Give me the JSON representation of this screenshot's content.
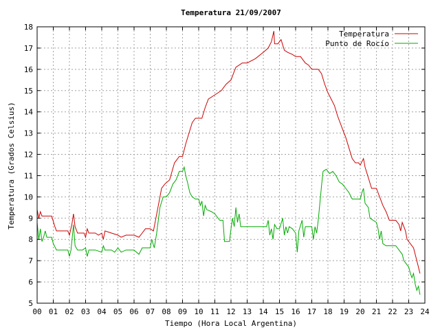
{
  "chart_data": {
    "type": "line",
    "title": "Temperatura 21/09/2007",
    "xlabel": "Tiempo (Hora Local Argentina)",
    "ylabel": "Temperatura (Grados Celsius)",
    "xlim": [
      0,
      24
    ],
    "ylim": [
      5,
      18
    ],
    "x_ticks": [
      "00",
      "01",
      "02",
      "03",
      "04",
      "05",
      "06",
      "07",
      "08",
      "09",
      "10",
      "11",
      "12",
      "13",
      "14",
      "15",
      "16",
      "17",
      "18",
      "19",
      "20",
      "21",
      "22",
      "23",
      "24"
    ],
    "y_ticks": [
      "5",
      "6",
      "7",
      "8",
      "9",
      "10",
      "11",
      "12",
      "13",
      "14",
      "15",
      "16",
      "17",
      "18"
    ],
    "grid": true,
    "legend_position": "top-right",
    "series": [
      {
        "name": "Temperatura",
        "color": "#cc0000",
        "points": [
          [
            0.0,
            9.4
          ],
          [
            0.1,
            9.0
          ],
          [
            0.2,
            9.3
          ],
          [
            0.3,
            9.1
          ],
          [
            0.5,
            9.1
          ],
          [
            0.9,
            9.1
          ],
          [
            1.1,
            8.6
          ],
          [
            1.2,
            8.4
          ],
          [
            1.5,
            8.4
          ],
          [
            1.9,
            8.4
          ],
          [
            2.0,
            8.2
          ],
          [
            2.15,
            8.7
          ],
          [
            2.25,
            9.2
          ],
          [
            2.35,
            8.6
          ],
          [
            2.5,
            8.3
          ],
          [
            2.9,
            8.3
          ],
          [
            3.0,
            8.1
          ],
          [
            3.1,
            8.5
          ],
          [
            3.2,
            8.3
          ],
          [
            3.6,
            8.3
          ],
          [
            3.8,
            8.2
          ],
          [
            4.0,
            8.3
          ],
          [
            4.1,
            8.0
          ],
          [
            4.2,
            8.4
          ],
          [
            4.6,
            8.3
          ],
          [
            5.0,
            8.2
          ],
          [
            5.2,
            8.1
          ],
          [
            5.5,
            8.2
          ],
          [
            6.0,
            8.2
          ],
          [
            6.3,
            8.1
          ],
          [
            6.5,
            8.3
          ],
          [
            6.7,
            8.5
          ],
          [
            7.0,
            8.5
          ],
          [
            7.2,
            8.4
          ],
          [
            7.25,
            8.6
          ],
          [
            7.5,
            9.6
          ],
          [
            7.7,
            10.4
          ],
          [
            7.9,
            10.6
          ],
          [
            8.2,
            10.8
          ],
          [
            8.5,
            11.6
          ],
          [
            8.8,
            11.9
          ],
          [
            9.0,
            11.9
          ],
          [
            9.2,
            12.5
          ],
          [
            9.4,
            13.0
          ],
          [
            9.6,
            13.5
          ],
          [
            9.8,
            13.7
          ],
          [
            10.2,
            13.7
          ],
          [
            10.4,
            14.2
          ],
          [
            10.6,
            14.6
          ],
          [
            11.0,
            14.8
          ],
          [
            11.4,
            15.0
          ],
          [
            11.7,
            15.3
          ],
          [
            12.0,
            15.5
          ],
          [
            12.2,
            15.9
          ],
          [
            12.3,
            16.1
          ],
          [
            12.5,
            16.2
          ],
          [
            12.7,
            16.3
          ],
          [
            13.0,
            16.3
          ],
          [
            13.5,
            16.5
          ],
          [
            14.0,
            16.8
          ],
          [
            14.3,
            17.0
          ],
          [
            14.5,
            17.3
          ],
          [
            14.65,
            17.8
          ],
          [
            14.7,
            17.2
          ],
          [
            14.9,
            17.2
          ],
          [
            15.1,
            17.4
          ],
          [
            15.3,
            16.9
          ],
          [
            15.5,
            16.8
          ],
          [
            15.8,
            16.7
          ],
          [
            16.0,
            16.6
          ],
          [
            16.3,
            16.6
          ],
          [
            16.6,
            16.3
          ],
          [
            16.8,
            16.2
          ],
          [
            17.0,
            16.0
          ],
          [
            17.4,
            16.0
          ],
          [
            17.6,
            15.8
          ],
          [
            17.8,
            15.3
          ],
          [
            18.0,
            14.9
          ],
          [
            18.2,
            14.6
          ],
          [
            18.4,
            14.3
          ],
          [
            18.6,
            13.8
          ],
          [
            18.9,
            13.2
          ],
          [
            19.1,
            12.8
          ],
          [
            19.3,
            12.3
          ],
          [
            19.5,
            11.8
          ],
          [
            19.7,
            11.6
          ],
          [
            19.9,
            11.6
          ],
          [
            20.0,
            11.5
          ],
          [
            20.2,
            11.8
          ],
          [
            20.3,
            11.4
          ],
          [
            20.5,
            10.9
          ],
          [
            20.7,
            10.4
          ],
          [
            21.0,
            10.4
          ],
          [
            21.2,
            10.0
          ],
          [
            21.4,
            9.6
          ],
          [
            21.6,
            9.3
          ],
          [
            21.8,
            8.9
          ],
          [
            22.2,
            8.9
          ],
          [
            22.4,
            8.7
          ],
          [
            22.5,
            8.4
          ],
          [
            22.6,
            8.8
          ],
          [
            22.8,
            8.4
          ],
          [
            22.9,
            8.0
          ],
          [
            23.1,
            7.8
          ],
          [
            23.3,
            7.6
          ],
          [
            23.4,
            7.3
          ],
          [
            23.5,
            7.0
          ],
          [
            23.6,
            6.7
          ],
          [
            23.7,
            6.4
          ]
        ]
      },
      {
        "name": "Punto de Rocío",
        "color": "#00aa00",
        "points": [
          [
            0.0,
            8.8
          ],
          [
            0.1,
            8.0
          ],
          [
            0.2,
            8.5
          ],
          [
            0.3,
            7.9
          ],
          [
            0.4,
            8.1
          ],
          [
            0.5,
            8.4
          ],
          [
            0.6,
            8.1
          ],
          [
            0.9,
            8.1
          ],
          [
            1.0,
            7.8
          ],
          [
            1.2,
            7.5
          ],
          [
            1.5,
            7.5
          ],
          [
            1.9,
            7.5
          ],
          [
            2.0,
            7.2
          ],
          [
            2.1,
            7.5
          ],
          [
            2.25,
            8.7
          ],
          [
            2.35,
            7.7
          ],
          [
            2.5,
            7.5
          ],
          [
            2.8,
            7.5
          ],
          [
            3.0,
            7.6
          ],
          [
            3.1,
            7.2
          ],
          [
            3.2,
            7.5
          ],
          [
            3.6,
            7.5
          ],
          [
            4.0,
            7.4
          ],
          [
            4.1,
            7.7
          ],
          [
            4.2,
            7.5
          ],
          [
            4.6,
            7.5
          ],
          [
            4.8,
            7.4
          ],
          [
            5.0,
            7.6
          ],
          [
            5.2,
            7.4
          ],
          [
            5.5,
            7.5
          ],
          [
            6.0,
            7.5
          ],
          [
            6.3,
            7.3
          ],
          [
            6.5,
            7.6
          ],
          [
            6.8,
            7.6
          ],
          [
            7.0,
            7.6
          ],
          [
            7.1,
            8.0
          ],
          [
            7.25,
            7.6
          ],
          [
            7.4,
            8.3
          ],
          [
            7.6,
            9.5
          ],
          [
            7.8,
            10.0
          ],
          [
            8.0,
            10.0
          ],
          [
            8.2,
            10.2
          ],
          [
            8.4,
            10.6
          ],
          [
            8.6,
            10.8
          ],
          [
            8.8,
            11.2
          ],
          [
            9.0,
            11.2
          ],
          [
            9.1,
            11.4
          ],
          [
            9.2,
            11.0
          ],
          [
            9.3,
            10.7
          ],
          [
            9.45,
            10.2
          ],
          [
            9.6,
            10.0
          ],
          [
            9.8,
            9.9
          ],
          [
            10.0,
            9.9
          ],
          [
            10.1,
            9.6
          ],
          [
            10.2,
            9.8
          ],
          [
            10.3,
            9.1
          ],
          [
            10.4,
            9.6
          ],
          [
            10.5,
            9.4
          ],
          [
            10.8,
            9.3
          ],
          [
            11.0,
            9.2
          ],
          [
            11.3,
            8.9
          ],
          [
            11.5,
            8.9
          ],
          [
            11.6,
            7.9
          ],
          [
            11.9,
            7.9
          ],
          [
            12.0,
            8.5
          ],
          [
            12.1,
            9.0
          ],
          [
            12.2,
            8.6
          ],
          [
            12.3,
            9.5
          ],
          [
            12.4,
            8.8
          ],
          [
            12.5,
            9.2
          ],
          [
            12.6,
            8.6
          ],
          [
            12.8,
            8.6
          ],
          [
            13.0,
            8.6
          ],
          [
            14.0,
            8.6
          ],
          [
            14.2,
            8.6
          ],
          [
            14.3,
            8.9
          ],
          [
            14.4,
            8.2
          ],
          [
            14.5,
            8.5
          ],
          [
            14.6,
            8.0
          ],
          [
            14.7,
            8.7
          ],
          [
            14.85,
            8.5
          ],
          [
            15.0,
            8.5
          ],
          [
            15.2,
            9.0
          ],
          [
            15.3,
            8.2
          ],
          [
            15.4,
            8.6
          ],
          [
            15.5,
            8.3
          ],
          [
            15.6,
            8.6
          ],
          [
            15.8,
            8.5
          ],
          [
            16.0,
            8.3
          ],
          [
            16.1,
            7.4
          ],
          [
            16.2,
            8.4
          ],
          [
            16.4,
            8.9
          ],
          [
            16.5,
            8.1
          ],
          [
            16.6,
            8.6
          ],
          [
            16.8,
            8.6
          ],
          [
            17.0,
            8.6
          ],
          [
            17.1,
            8.0
          ],
          [
            17.2,
            8.6
          ],
          [
            17.3,
            8.3
          ],
          [
            17.4,
            8.9
          ],
          [
            17.6,
            10.5
          ],
          [
            17.7,
            11.2
          ],
          [
            17.9,
            11.3
          ],
          [
            18.1,
            11.1
          ],
          [
            18.3,
            11.2
          ],
          [
            18.5,
            11.0
          ],
          [
            18.7,
            10.7
          ],
          [
            18.9,
            10.6
          ],
          [
            19.1,
            10.4
          ],
          [
            19.3,
            10.2
          ],
          [
            19.5,
            9.9
          ],
          [
            19.7,
            9.9
          ],
          [
            20.0,
            9.9
          ],
          [
            20.1,
            10.2
          ],
          [
            20.2,
            10.4
          ],
          [
            20.3,
            9.7
          ],
          [
            20.5,
            9.5
          ],
          [
            20.6,
            9.0
          ],
          [
            20.8,
            8.9
          ],
          [
            21.0,
            8.8
          ],
          [
            21.1,
            8.5
          ],
          [
            21.2,
            8.0
          ],
          [
            21.3,
            8.4
          ],
          [
            21.4,
            7.8
          ],
          [
            21.6,
            7.7
          ],
          [
            21.8,
            7.7
          ],
          [
            22.0,
            7.7
          ],
          [
            22.2,
            7.7
          ],
          [
            22.4,
            7.5
          ],
          [
            22.6,
            7.3
          ],
          [
            22.7,
            7.0
          ],
          [
            22.8,
            6.9
          ],
          [
            23.0,
            6.7
          ],
          [
            23.1,
            6.4
          ],
          [
            23.2,
            6.2
          ],
          [
            23.3,
            6.4
          ],
          [
            23.4,
            5.9
          ],
          [
            23.5,
            5.6
          ],
          [
            23.6,
            5.8
          ],
          [
            23.7,
            5.4
          ]
        ]
      }
    ]
  }
}
